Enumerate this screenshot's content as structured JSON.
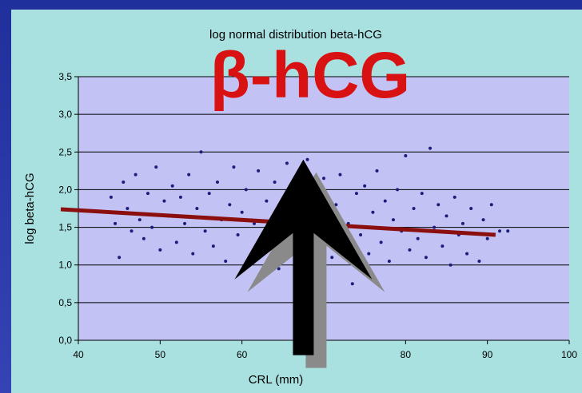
{
  "overlay_text": "β-hCG",
  "colors": {
    "panel": "#a9e1e1",
    "plot_area": "#c2c2f5",
    "points": "#1c1c7a",
    "trend": "#8b0f0f",
    "overlay": "#d81212",
    "arrow": "#000000",
    "arrow_shadow": "#8a8a8a"
  },
  "chart_data": {
    "type": "scatter",
    "title": "log normal distribution beta-hCG",
    "xlabel": "CRL (mm)",
    "ylabel": "log beta-hCG",
    "xlim": [
      40,
      100
    ],
    "ylim": [
      0,
      3.5
    ],
    "xticks": [
      40,
      50,
      60,
      80,
      90,
      100
    ],
    "xtick_labels": [
      "40",
      "50",
      "60",
      "80",
      "90",
      "100"
    ],
    "yticks": [
      0,
      0.5,
      1.0,
      1.5,
      2.0,
      2.5,
      3.0,
      3.5
    ],
    "ytick_labels": [
      "0,0",
      "0,5",
      "1,0",
      "1,5",
      "2,0",
      "2,5",
      "3,0",
      "3,5"
    ],
    "grid": true,
    "points": [
      [
        44.0,
        1.9
      ],
      [
        44.5,
        1.55
      ],
      [
        45.0,
        1.1
      ],
      [
        45.5,
        2.1
      ],
      [
        46.0,
        1.75
      ],
      [
        46.5,
        1.45
      ],
      [
        47.0,
        2.2
      ],
      [
        47.5,
        1.6
      ],
      [
        48.0,
        1.35
      ],
      [
        48.5,
        1.95
      ],
      [
        49.0,
        1.5
      ],
      [
        49.5,
        2.3
      ],
      [
        50.0,
        1.2
      ],
      [
        50.5,
        1.85
      ],
      [
        51.0,
        1.65
      ],
      [
        51.5,
        2.05
      ],
      [
        52.0,
        1.3
      ],
      [
        52.5,
        1.9
      ],
      [
        53.0,
        1.55
      ],
      [
        53.5,
        2.2
      ],
      [
        54.0,
        1.15
      ],
      [
        54.5,
        1.75
      ],
      [
        55.0,
        2.5
      ],
      [
        55.5,
        1.45
      ],
      [
        56.0,
        1.95
      ],
      [
        56.5,
        1.25
      ],
      [
        57.0,
        2.1
      ],
      [
        57.5,
        1.6
      ],
      [
        58.0,
        1.05
      ],
      [
        58.5,
        1.8
      ],
      [
        59.0,
        2.3
      ],
      [
        59.5,
        1.4
      ],
      [
        60.0,
        1.7
      ],
      [
        60.5,
        2.0
      ],
      [
        61.0,
        1.1
      ],
      [
        61.5,
        1.55
      ],
      [
        62.0,
        2.25
      ],
      [
        62.5,
        1.3
      ],
      [
        63.0,
        1.85
      ],
      [
        63.5,
        1.5
      ],
      [
        64.0,
        2.1
      ],
      [
        64.5,
        0.95
      ],
      [
        65.0,
        1.65
      ],
      [
        65.5,
        2.35
      ],
      [
        66.0,
        1.2
      ],
      [
        66.5,
        1.75
      ],
      [
        67.0,
        0.35
      ],
      [
        67.5,
        1.45
      ],
      [
        68.0,
        2.4
      ],
      [
        68.5,
        1.0
      ],
      [
        69.0,
        1.9
      ],
      [
        69.5,
        1.35
      ],
      [
        70.0,
        2.15
      ],
      [
        70.5,
        1.6
      ],
      [
        71.0,
        1.1
      ],
      [
        71.5,
        1.8
      ],
      [
        72.0,
        2.2
      ],
      [
        72.5,
        1.25
      ],
      [
        73.0,
        1.55
      ],
      [
        73.5,
        0.75
      ],
      [
        74.0,
        1.95
      ],
      [
        74.5,
        1.4
      ],
      [
        75.0,
        2.05
      ],
      [
        75.5,
        1.15
      ],
      [
        76.0,
        1.7
      ],
      [
        76.5,
        2.25
      ],
      [
        77.0,
        1.3
      ],
      [
        77.5,
        1.85
      ],
      [
        78.0,
        1.05
      ],
      [
        78.5,
        1.6
      ],
      [
        79.0,
        2.0
      ],
      [
        79.5,
        1.45
      ],
      [
        80.0,
        2.45
      ],
      [
        80.5,
        1.2
      ],
      [
        81.0,
        1.75
      ],
      [
        81.5,
        1.35
      ],
      [
        82.0,
        1.95
      ],
      [
        82.5,
        1.1
      ],
      [
        83.0,
        2.55
      ],
      [
        83.5,
        1.5
      ],
      [
        84.0,
        1.8
      ],
      [
        84.5,
        1.25
      ],
      [
        85.0,
        1.65
      ],
      [
        85.5,
        1.0
      ],
      [
        86.0,
        1.9
      ],
      [
        86.5,
        1.4
      ],
      [
        87.0,
        1.55
      ],
      [
        87.5,
        1.15
      ],
      [
        88.0,
        1.75
      ],
      [
        89.0,
        1.05
      ],
      [
        89.5,
        1.6
      ],
      [
        90.0,
        1.35
      ],
      [
        90.5,
        1.8
      ],
      [
        91.5,
        1.45
      ],
      [
        92.5,
        1.45
      ]
    ],
    "trend_line": {
      "x": [
        40,
        91
      ],
      "y": [
        1.74,
        1.4
      ]
    },
    "arrow": {
      "from": [
        67.5,
        0.1
      ],
      "to": [
        67.5,
        2.4
      ]
    }
  }
}
